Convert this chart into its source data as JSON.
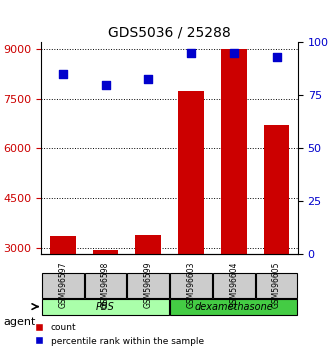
{
  "title": "GDS5036 / 25288",
  "samples": [
    "GSM596597",
    "GSM596598",
    "GSM596599",
    "GSM596603",
    "GSM596604",
    "GSM596605"
  ],
  "counts": [
    3350,
    2950,
    3400,
    7750,
    9000,
    6700
  ],
  "percentiles": [
    85,
    80,
    83,
    95,
    95,
    93
  ],
  "groups": [
    "PBS",
    "PBS",
    "PBS",
    "dexamethasone",
    "dexamethasone",
    "dexamethasone"
  ],
  "group_colors": {
    "PBS": "#90EE90",
    "dexamethasone": "#00CC00"
  },
  "bar_color": "#CC0000",
  "dot_color": "#0000CC",
  "ylim_left": [
    2800,
    9200
  ],
  "yticks_left": [
    3000,
    4500,
    6000,
    7500,
    9000
  ],
  "ylim_right": [
    0,
    100
  ],
  "yticks_right": [
    0,
    25,
    50,
    75,
    100
  ],
  "ylabel_left_color": "#CC0000",
  "ylabel_right_color": "#0000CC",
  "background_color": "#ffffff",
  "plot_bg": "#ffffff",
  "grid_color": "#000000",
  "agent_label": "agent",
  "legend_count": "count",
  "legend_percentile": "percentile rank within the sample"
}
